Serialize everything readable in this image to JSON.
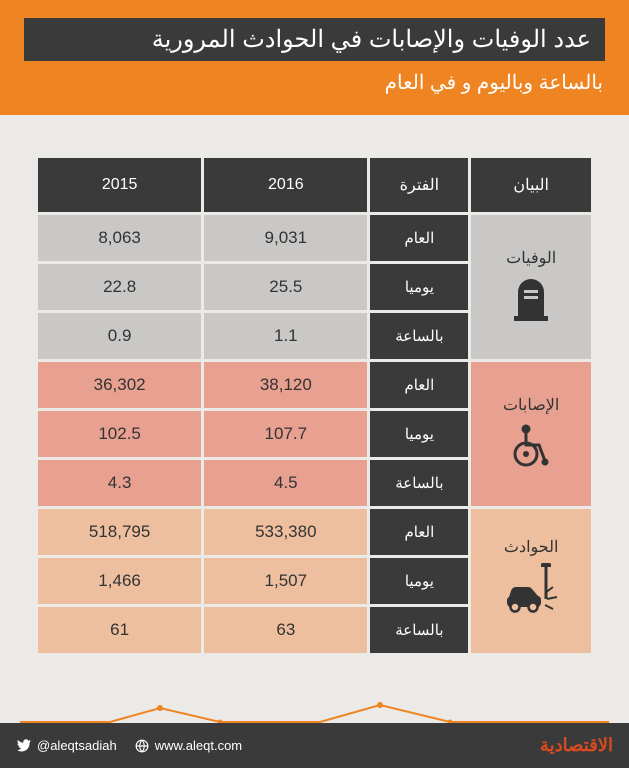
{
  "header": {
    "title": "عدد الوفيات والإصابات في الحوادث المرورية",
    "subtitle": "بالساعة وباليوم و في العام"
  },
  "columns": {
    "category": "البيان",
    "period": "الفترة",
    "y2016": "2016",
    "y2015": "2015"
  },
  "periods": {
    "year": "العام",
    "day": "يوميا",
    "hour": "بالساعة"
  },
  "groups": [
    {
      "label": "الوفيات",
      "icon": "tombstone-icon",
      "cat_bg": "#c9c8c6",
      "val_bg": "#c9c8c6",
      "rows": [
        {
          "period_key": "year",
          "y2016": "9,031",
          "y2015": "8,063"
        },
        {
          "period_key": "day",
          "y2016": "25.5",
          "y2015": "22.8"
        },
        {
          "period_key": "hour",
          "y2016": "1.1",
          "y2015": "0.9"
        }
      ]
    },
    {
      "label": "الإصابات",
      "icon": "wheelchair-icon",
      "cat_bg": "#e8a191",
      "val_bg": "#e8a191",
      "rows": [
        {
          "period_key": "year",
          "y2016": "38,120",
          "y2015": "36,302"
        },
        {
          "period_key": "day",
          "y2016": "107.7",
          "y2015": "102.5"
        },
        {
          "period_key": "hour",
          "y2016": "4.5",
          "y2015": "4.3"
        }
      ]
    },
    {
      "label": "الحوادث",
      "icon": "car-crash-icon",
      "cat_bg": "#edbf9f",
      "val_bg": "#edbf9f",
      "rows": [
        {
          "period_key": "year",
          "y2016": "533,380",
          "y2015": "518,795"
        },
        {
          "period_key": "day",
          "y2016": "1,507",
          "y2015": "1,466"
        },
        {
          "period_key": "hour",
          "y2016": "63",
          "y2015": "61"
        }
      ]
    }
  ],
  "footer": {
    "twitter": "@aleqtsadiah",
    "website": "www.aleqt.com",
    "brand": "الاقتصادية"
  },
  "style": {
    "header_bg": "#ef8422",
    "title_bg": "#3a3a3a",
    "frame_bg": "#ebeae6",
    "sparkline_color": "#ef8422",
    "footer_bg": "#3a3a3a",
    "brand_color": "#d84a1f"
  }
}
